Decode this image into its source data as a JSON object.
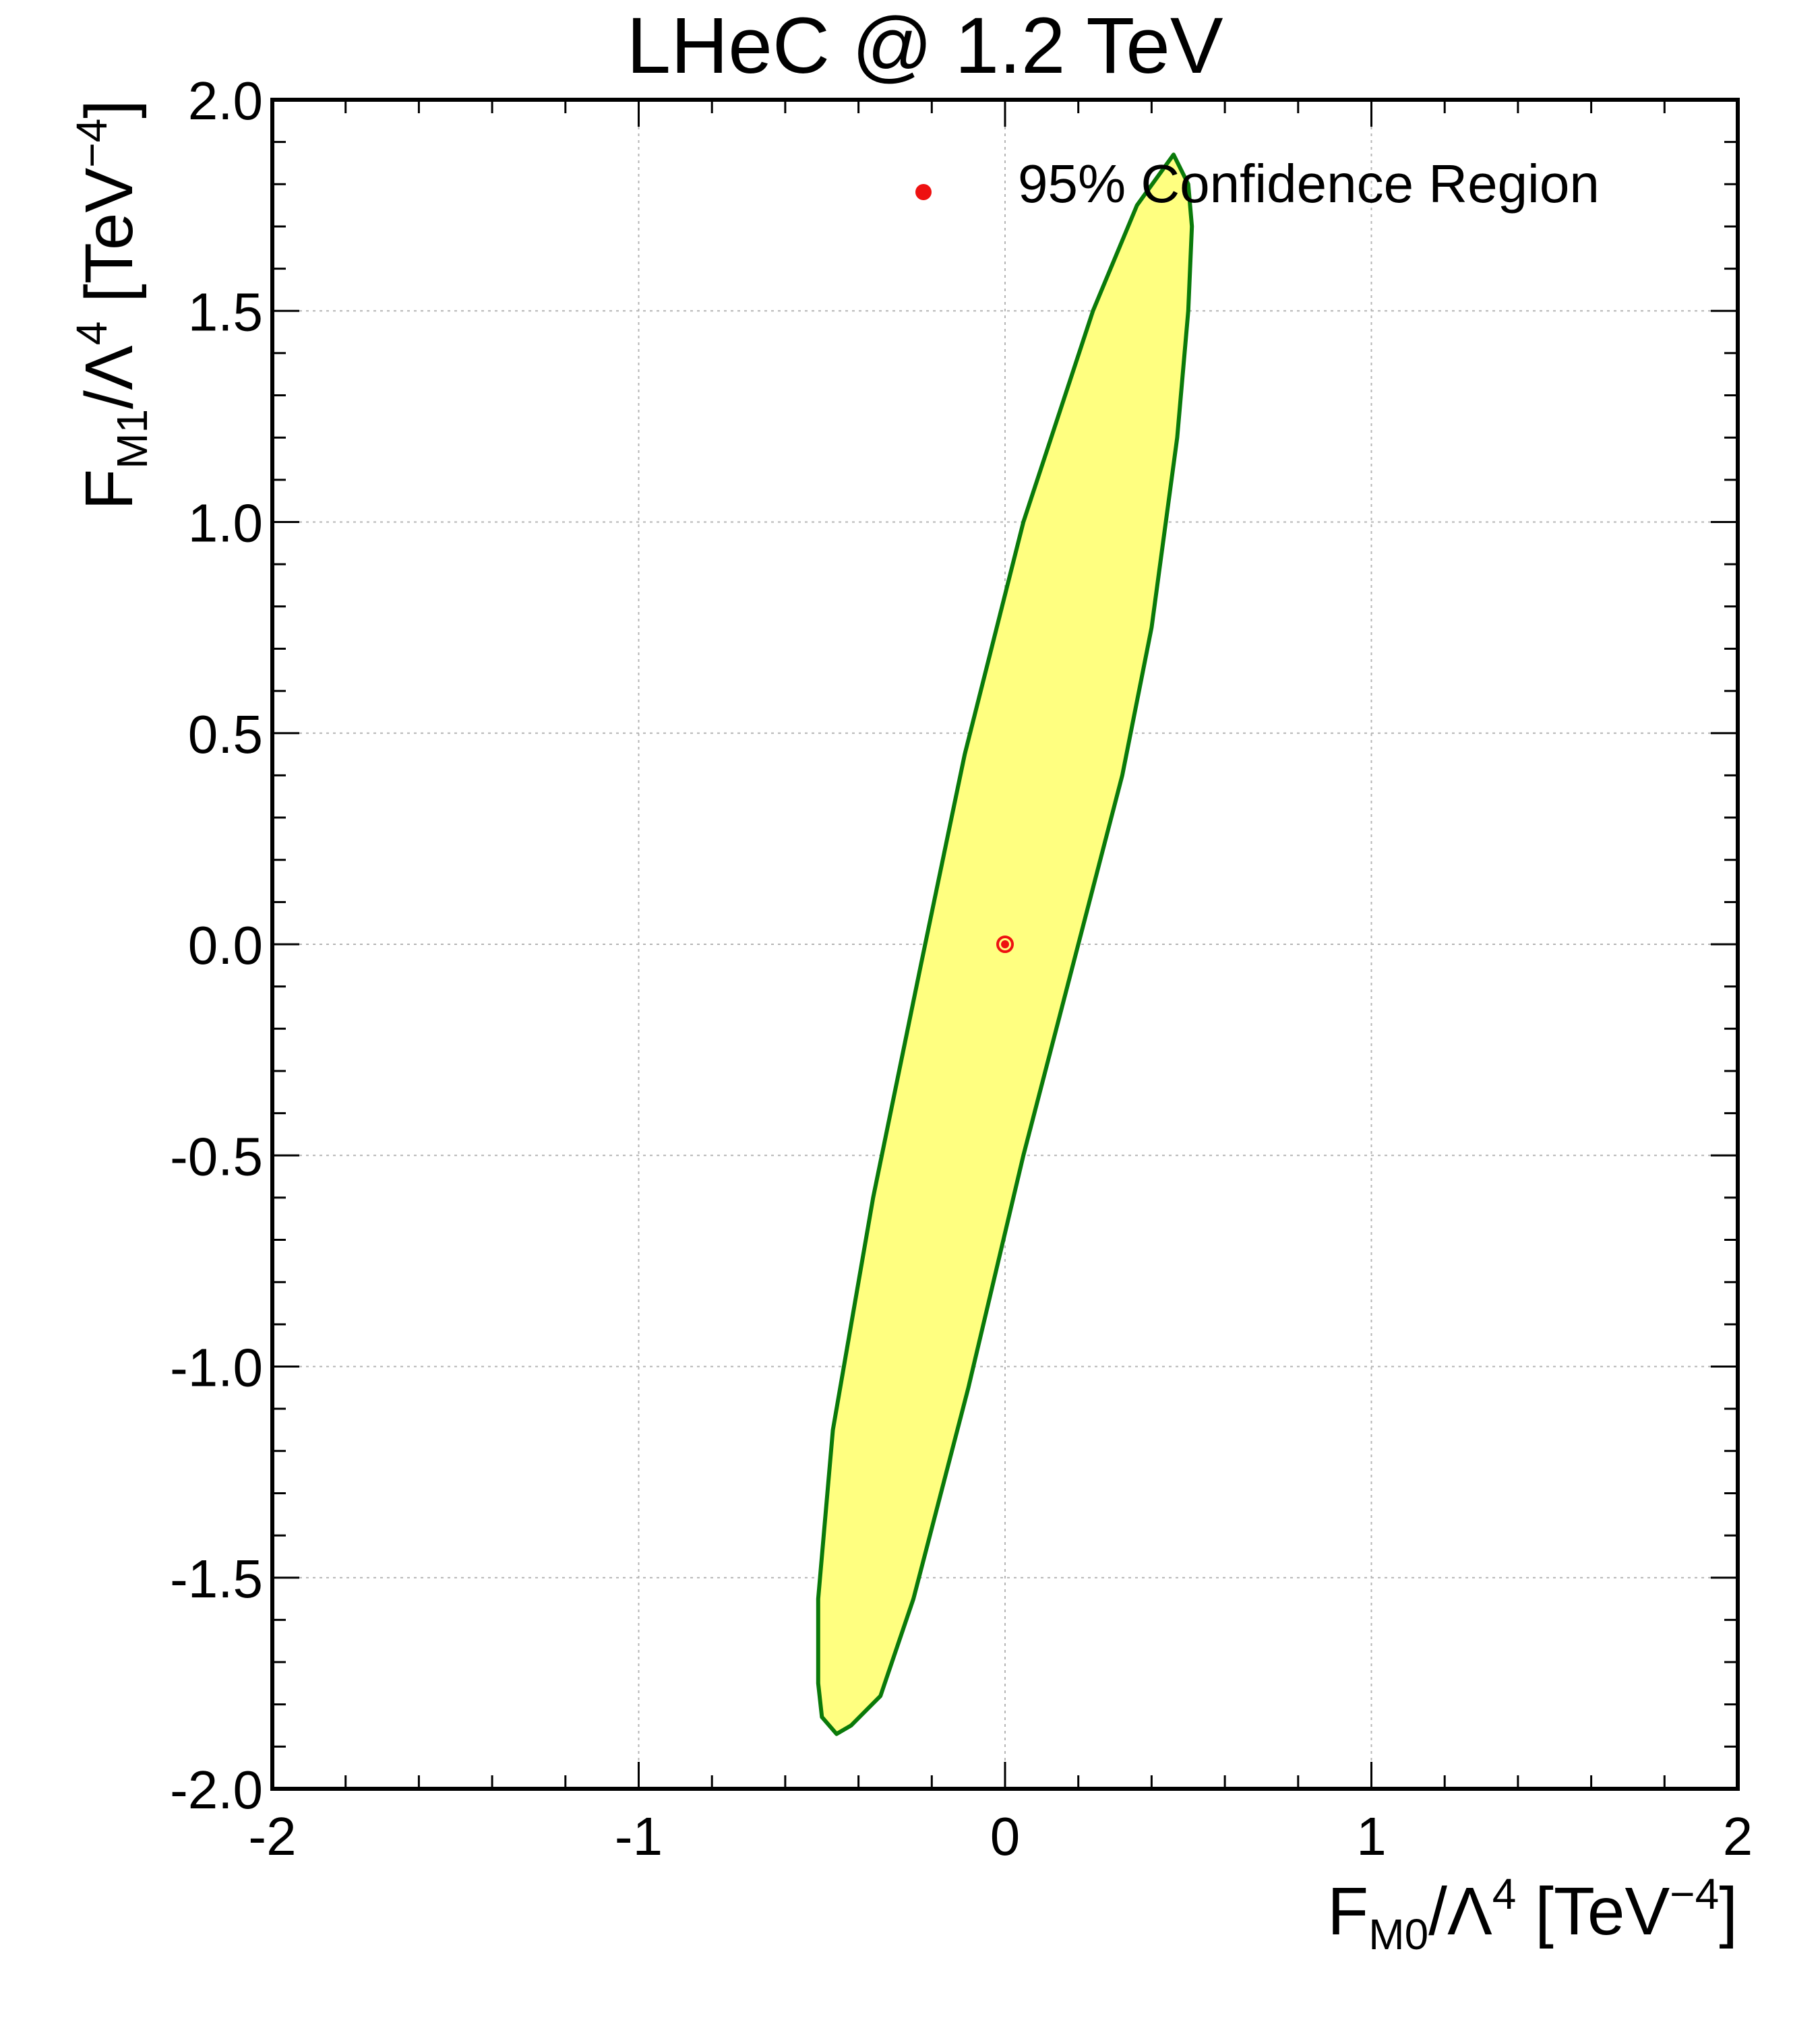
{
  "chart_data": {
    "type": "contour",
    "title": "LHeC @ 1.2 TeV",
    "xlabel": {
      "main": "F",
      "sub": "M0",
      "mid": "/Λ",
      "sup": "4",
      "unit_open": " [TeV",
      "unit_sup": "−4",
      "unit_close": "]"
    },
    "ylabel": {
      "main": "F",
      "sub": "M1",
      "mid": "/Λ",
      "sup": "4",
      "unit_open": " [TeV",
      "unit_sup": "−4",
      "unit_close": "]"
    },
    "xlim": [
      -2,
      2
    ],
    "ylim": [
      -2,
      2
    ],
    "xticks": [
      -2,
      -1,
      0,
      1,
      2
    ],
    "xtick_labels": [
      "-2",
      "-1",
      "0",
      "1",
      "2"
    ],
    "yticks": [
      -2,
      -1.5,
      -1,
      -0.5,
      0,
      0.5,
      1,
      1.5,
      2
    ],
    "ytick_labels": [
      "-2.0",
      "-1.5",
      "-1.0",
      "-0.5",
      "0.0",
      "0.5",
      "1.0",
      "1.5",
      "2.0"
    ],
    "grid": true,
    "legend": {
      "placement": "top-right",
      "entries": [
        {
          "label": "95% Confidence Region",
          "marker": "dot",
          "color": "#ee1111"
        }
      ]
    },
    "region": {
      "name": "95% Confidence Region",
      "fill": "#ffff80",
      "edge": "#0a7a0a",
      "points": [
        [
          0.46,
          1.87
        ],
        [
          0.5,
          1.8
        ],
        [
          0.51,
          1.7
        ],
        [
          0.5,
          1.5
        ],
        [
          0.47,
          1.2
        ],
        [
          0.4,
          0.75
        ],
        [
          0.32,
          0.4
        ],
        [
          0.2,
          0.0
        ],
        [
          0.05,
          -0.5
        ],
        [
          -0.1,
          -1.05
        ],
        [
          -0.25,
          -1.55
        ],
        [
          -0.34,
          -1.78
        ],
        [
          -0.42,
          -1.85
        ],
        [
          -0.46,
          -1.87
        ],
        [
          -0.5,
          -1.83
        ],
        [
          -0.51,
          -1.75
        ],
        [
          -0.51,
          -1.55
        ],
        [
          -0.47,
          -1.15
        ],
        [
          -0.36,
          -0.6
        ],
        [
          -0.23,
          -0.05
        ],
        [
          -0.11,
          0.45
        ],
        [
          0.05,
          1.0
        ],
        [
          0.24,
          1.5
        ],
        [
          0.36,
          1.75
        ],
        [
          0.46,
          1.87
        ]
      ]
    },
    "best_fit": {
      "x": 0.0,
      "y": 0.0,
      "color": "#ee1111"
    }
  }
}
